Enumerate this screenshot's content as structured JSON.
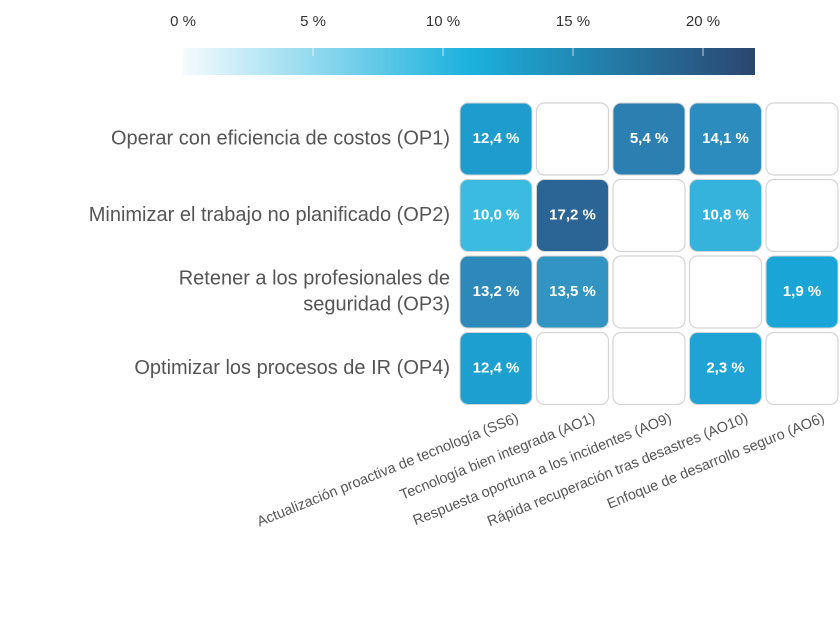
{
  "chart_data": {
    "type": "heatmap",
    "rows": [
      [
        "Operar con eficiencia de costos (OP1)"
      ],
      [
        "Minimizar el trabajo no planificado (OP2)"
      ],
      [
        "Retener a los profesionales de",
        "seguridad (OP3)"
      ],
      [
        "Optimizar los procesos de IR (OP4)"
      ]
    ],
    "columns": [
      "Actualización proactiva de tecnología (SS6)",
      "Tecnología bien integrada (AO1)",
      "Respuesta oportuna a los incidentes (AO9)",
      "Rápida recuperación tras desastres (AO10)",
      "Enfoque de desarrollo seguro (AO6)"
    ],
    "values": [
      [
        12.4,
        null,
        5.4,
        14.1,
        null
      ],
      [
        10.0,
        17.2,
        null,
        10.8,
        null
      ],
      [
        13.2,
        13.5,
        null,
        null,
        1.9
      ],
      [
        12.4,
        null,
        null,
        2.3,
        null
      ]
    ],
    "value_labels": [
      [
        "12,4 %",
        null,
        "5,4 %",
        "14,1 %",
        null
      ],
      [
        "10,0 %",
        "17,2 %",
        null,
        "10,8 %",
        null
      ],
      [
        "13,2 %",
        "13,5 %",
        null,
        null,
        "1,9 %"
      ],
      [
        "12,4 %",
        null,
        null,
        "2,3 %",
        null
      ]
    ],
    "colors": [
      [
        "#1e9ccd",
        null,
        "#2b7fb1",
        "#2c8cbd",
        null
      ],
      [
        "#3bbbe0",
        "#2a6596",
        null,
        "#35b3dd",
        null
      ],
      [
        "#2c89ba",
        "#3194c3",
        null,
        null,
        "#1aa5d7"
      ],
      [
        "#1d9fd0",
        null,
        null,
        "#1fa3d4",
        null
      ]
    ],
    "colorbar_lim": [
      0,
      22
    ],
    "colorbar_ticks": [
      {
        "value": 0,
        "label": "0 %"
      },
      {
        "value": 5,
        "label": "5 %"
      },
      {
        "value": 10,
        "label": "10 %"
      },
      {
        "value": 15,
        "label": "15 %"
      },
      {
        "value": 20,
        "label": "20 %"
      }
    ],
    "colorscale": [
      "#f5fbfd",
      "#1bb1dd",
      "#2b4670"
    ]
  }
}
